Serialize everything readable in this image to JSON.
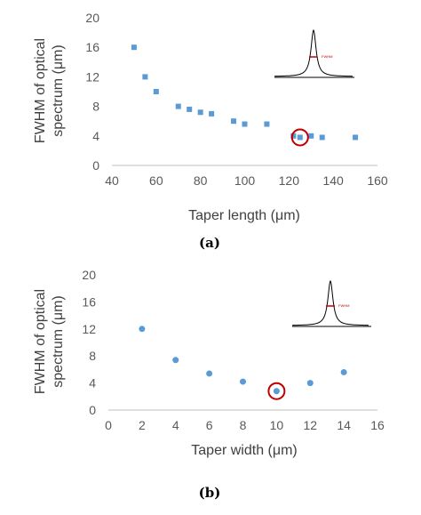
{
  "colors": {
    "marker": "#5b9bd5",
    "axis": "#bfbfbf",
    "highlight": "#c00000",
    "inset_curve": "#000000"
  },
  "chart_data": [
    {
      "type": "scatter",
      "panel_label": "(a)",
      "xlabel": "Taper length (μm)",
      "ylabel": [
        "FWHM of optical",
        "spectrum (μm)"
      ],
      "xlim": [
        40,
        160
      ],
      "ylim": [
        0,
        20
      ],
      "xticks": [
        "40",
        "60",
        "80",
        "100",
        "120",
        "140",
        "160"
      ],
      "yticks": [
        "0",
        "4",
        "8",
        "12",
        "16",
        "20"
      ],
      "marker": "square",
      "series": [
        {
          "x": [
            50,
            55,
            60,
            70,
            75,
            80,
            85,
            95,
            100,
            110,
            122,
            125,
            130,
            135,
            150
          ],
          "y": [
            16,
            12,
            10,
            8,
            7.6,
            7.2,
            7,
            6,
            5.6,
            5.6,
            4,
            3.8,
            4,
            3.8,
            3.8
          ]
        }
      ],
      "highlight": {
        "x": 125,
        "y": 3.8
      },
      "inset_label": "FWHM"
    },
    {
      "type": "scatter",
      "panel_label": "(b)",
      "xlabel": "Taper width (μm)",
      "ylabel": [
        "FWHM of optical",
        "spectrum (μm)"
      ],
      "xlim": [
        0,
        16
      ],
      "ylim": [
        0,
        20
      ],
      "xticks": [
        "0",
        "2",
        "4",
        "6",
        "8",
        "10",
        "12",
        "14",
        "16"
      ],
      "yticks": [
        "0",
        "4",
        "8",
        "12",
        "16",
        "20"
      ],
      "marker": "circle",
      "series": [
        {
          "x": [
            2,
            4,
            6,
            8,
            10,
            12,
            14
          ],
          "y": [
            12,
            7.4,
            5.4,
            4.2,
            2.8,
            4,
            5.6
          ]
        }
      ],
      "highlight": {
        "x": 10,
        "y": 2.8
      },
      "inset_label": "FWHM"
    }
  ]
}
